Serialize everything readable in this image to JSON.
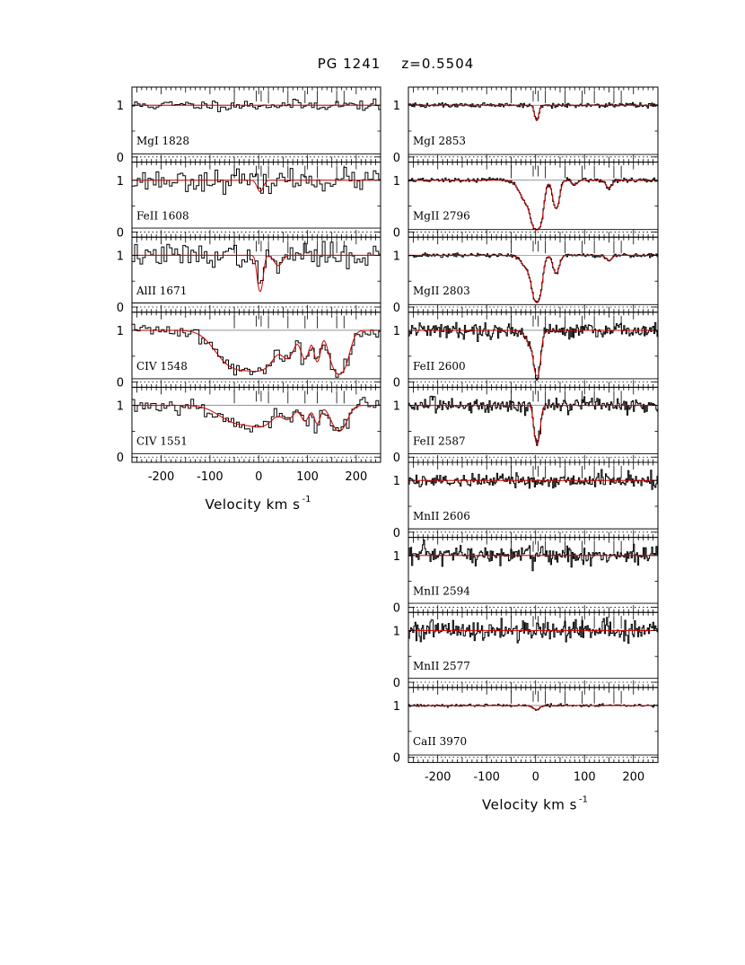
{
  "title": "PG 1241    z=0.5504",
  "colors": {
    "data": "#000000",
    "model": "#cc0000",
    "reference": "#000000"
  },
  "chart_data": {
    "type": "line",
    "title": "PG 1241    z=0.5504",
    "xlabel": "Velocity  km  s",
    "xlabel_sup": "-1",
    "xlim": [
      -260,
      250
    ],
    "ylim": [
      -0.1,
      1.35
    ],
    "yticks": [
      0,
      1
    ],
    "xticks": [
      -200,
      -100,
      0,
      100,
      200
    ],
    "grid": false,
    "legend": "none",
    "component_velocities": [
      -50,
      -5,
      5,
      20,
      60,
      95,
      120,
      160,
      175
    ],
    "columns": [
      {
        "panels": [
          {
            "label": "MgI  1828",
            "seed": 11,
            "noise": 0.05,
            "binwidth": 5.5,
            "absorption": []
          },
          {
            "label": "FeII  1608",
            "seed": 23,
            "noise": 0.1,
            "binwidth": 5.5,
            "absorption": [
              {
                "v": 3,
                "depth": 0.22,
                "sigma": 6
              }
            ]
          },
          {
            "label": "AlII  1671",
            "seed": 37,
            "noise": 0.11,
            "binwidth": 5.5,
            "absorption": [
              {
                "v": 3,
                "depth": 0.7,
                "sigma": 5
              },
              {
                "v": 40,
                "depth": 0.2,
                "sigma": 8
              }
            ]
          },
          {
            "label": "CIV  1548",
            "seed": 41,
            "noise": 0.07,
            "binwidth": 5.5,
            "absorption": [
              {
                "v": -40,
                "depth": 0.75,
                "sigma": 35
              },
              {
                "v": 10,
                "depth": 0.6,
                "sigma": 22
              },
              {
                "v": 60,
                "depth": 0.5,
                "sigma": 12
              },
              {
                "v": 95,
                "depth": 0.55,
                "sigma": 8
              },
              {
                "v": 120,
                "depth": 0.6,
                "sigma": 6
              },
              {
                "v": 165,
                "depth": 0.85,
                "sigma": 14
              }
            ]
          },
          {
            "label": "CIV  1551",
            "seed": 53,
            "noise": 0.08,
            "binwidth": 5.5,
            "absorption": [
              {
                "v": -40,
                "depth": 0.35,
                "sigma": 35
              },
              {
                "v": 10,
                "depth": 0.3,
                "sigma": 22
              },
              {
                "v": 60,
                "depth": 0.25,
                "sigma": 12
              },
              {
                "v": 95,
                "depth": 0.3,
                "sigma": 8
              },
              {
                "v": 120,
                "depth": 0.35,
                "sigma": 6
              },
              {
                "v": 165,
                "depth": 0.5,
                "sigma": 14
              }
            ]
          }
        ]
      },
      {
        "panels": [
          {
            "label": "MgI  2853",
            "seed": 61,
            "noise": 0.025,
            "binwidth": 2.2,
            "absorption": [
              {
                "v": 2,
                "depth": 0.3,
                "sigma": 4
              }
            ]
          },
          {
            "label": "MgII  2796",
            "seed": 67,
            "noise": 0.02,
            "binwidth": 2.2,
            "absorption": [
              {
                "v": -15,
                "depth": 0.45,
                "sigma": 14
              },
              {
                "v": 3,
                "depth": 0.95,
                "sigma": 8
              },
              {
                "v": 42,
                "depth": 0.55,
                "sigma": 6
              },
              {
                "v": 80,
                "depth": 0.08,
                "sigma": 6
              },
              {
                "v": 150,
                "depth": 0.15,
                "sigma": 6
              }
            ]
          },
          {
            "label": "MgII  2803",
            "seed": 71,
            "noise": 0.02,
            "binwidth": 2.2,
            "absorption": [
              {
                "v": -12,
                "depth": 0.3,
                "sigma": 13
              },
              {
                "v": 3,
                "depth": 0.9,
                "sigma": 7
              },
              {
                "v": 42,
                "depth": 0.35,
                "sigma": 6
              },
              {
                "v": 150,
                "depth": 0.1,
                "sigma": 6
              }
            ]
          },
          {
            "label": "FeII  2600",
            "seed": 79,
            "noise": 0.07,
            "binwidth": 2.2,
            "absorption": [
              {
                "v": -5,
                "depth": 0.3,
                "sigma": 12
              },
              {
                "v": 3,
                "depth": 0.85,
                "sigma": 5
              }
            ]
          },
          {
            "label": "FeII  2587",
            "seed": 83,
            "noise": 0.07,
            "binwidth": 2.2,
            "absorption": [
              {
                "v": 3,
                "depth": 0.75,
                "sigma": 5
              }
            ]
          },
          {
            "label": "MnII  2606",
            "seed": 89,
            "noise": 0.07,
            "binwidth": 2.2,
            "absorption": []
          },
          {
            "label": "MnII  2594",
            "seed": 97,
            "noise": 0.1,
            "binwidth": 2.2,
            "absorption": []
          },
          {
            "label": "MnII  2577",
            "seed": 101,
            "noise": 0.1,
            "binwidth": 2.2,
            "absorption": []
          },
          {
            "label": "CaII  3970",
            "seed": 107,
            "noise": 0.012,
            "binwidth": 2.2,
            "absorption": [
              {
                "v": 2,
                "depth": 0.08,
                "sigma": 6
              }
            ]
          }
        ]
      }
    ]
  }
}
